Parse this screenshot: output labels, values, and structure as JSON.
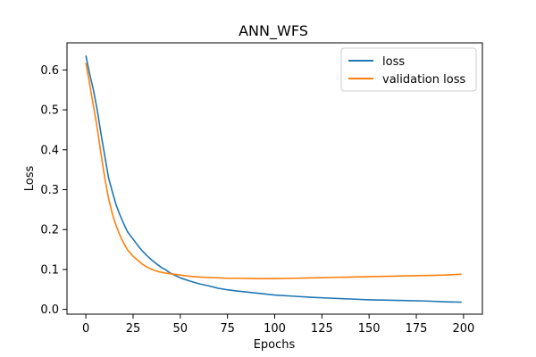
{
  "chart_data": {
    "type": "line",
    "title": "ANN_WFS",
    "xlabel": "Epochs",
    "ylabel": "Loss",
    "xlim": [
      -10,
      210
    ],
    "ylim": [
      -0.012,
      0.668
    ],
    "xticks": [
      0,
      25,
      50,
      75,
      100,
      125,
      150,
      175,
      200
    ],
    "yticks": [
      0.0,
      0.1,
      0.2,
      0.3,
      0.4,
      0.5,
      0.6
    ],
    "xtick_labels": [
      "0",
      "25",
      "50",
      "75",
      "100",
      "125",
      "150",
      "175",
      "200"
    ],
    "ytick_labels": [
      "0.0",
      "0.1",
      "0.2",
      "0.3",
      "0.4",
      "0.5",
      "0.6"
    ],
    "grid": false,
    "legend_position": "top-right",
    "series": [
      {
        "name": "loss",
        "color": "#1f77b4",
        "x": [
          0,
          2,
          4,
          6,
          8,
          10,
          12,
          14,
          16,
          18,
          20,
          22,
          25,
          28,
          30,
          32,
          35,
          38,
          40,
          42,
          45,
          50,
          55,
          60,
          65,
          70,
          75,
          80,
          90,
          100,
          110,
          120,
          130,
          140,
          150,
          160,
          170,
          180,
          190,
          199
        ],
        "values": [
          0.636,
          0.59,
          0.55,
          0.5,
          0.44,
          0.385,
          0.33,
          0.295,
          0.262,
          0.237,
          0.215,
          0.195,
          0.176,
          0.157,
          0.146,
          0.136,
          0.123,
          0.112,
          0.105,
          0.1,
          0.09,
          0.079,
          0.071,
          0.064,
          0.059,
          0.053,
          0.049,
          0.046,
          0.041,
          0.036,
          0.033,
          0.03,
          0.028,
          0.026,
          0.024,
          0.023,
          0.022,
          0.021,
          0.019,
          0.018
        ]
      },
      {
        "name": "validation loss",
        "color": "#ff7f0e",
        "x": [
          0,
          2,
          4,
          6,
          8,
          10,
          12,
          14,
          16,
          18,
          20,
          22,
          25,
          28,
          30,
          32,
          35,
          38,
          40,
          42,
          45,
          50,
          55,
          60,
          65,
          70,
          75,
          80,
          90,
          100,
          110,
          120,
          130,
          140,
          150,
          160,
          170,
          180,
          190,
          199
        ],
        "values": [
          0.618,
          0.565,
          0.51,
          0.455,
          0.39,
          0.33,
          0.278,
          0.24,
          0.21,
          0.186,
          0.166,
          0.15,
          0.133,
          0.121,
          0.113,
          0.107,
          0.1,
          0.095,
          0.093,
          0.091,
          0.089,
          0.086,
          0.083,
          0.081,
          0.08,
          0.079,
          0.078,
          0.078,
          0.077,
          0.077,
          0.078,
          0.079,
          0.08,
          0.081,
          0.082,
          0.083,
          0.084,
          0.085,
          0.086,
          0.088
        ]
      }
    ]
  }
}
